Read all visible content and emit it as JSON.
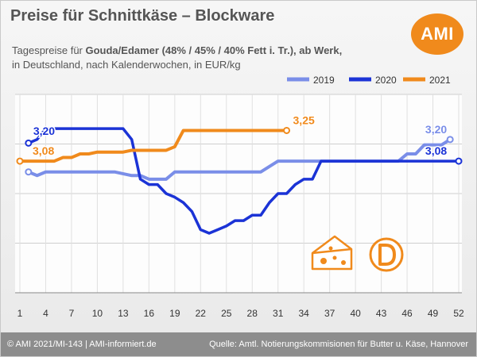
{
  "header": {
    "title": "Preise für Schnittkäse – Blockware",
    "subtitle_pre": "Tagespreise für ",
    "subtitle_bold": "Gouda/Edamer (48% / 45% / 40% Fett i. Tr.), ab Werk,",
    "subtitle_line2": "in Deutschland, nach Kalenderwochen, in EUR/kg"
  },
  "logo": {
    "text": "AMI"
  },
  "footer": {
    "left": "© AMI 2021/MI-143 | AMI-informiert.de",
    "right": "Quelle: Amtl. Notierungskommisionen für Butter u. Käse, Hannover"
  },
  "icons": [
    "cheese-icon",
    "d-seal-icon"
  ],
  "colors": {
    "2019": "#7a8ee8",
    "2020": "#1b33d6",
    "2021": "#f08a1c",
    "icon": "#f08a1c"
  },
  "chart_data": {
    "type": "line",
    "xlim": [
      1,
      52
    ],
    "x_ticks": [
      "1",
      "4",
      "7",
      "10",
      "13",
      "16",
      "19",
      "22",
      "25",
      "28",
      "31",
      "34",
      "37",
      "40",
      "43",
      "46",
      "49",
      "52"
    ],
    "ylim": [
      2.35,
      3.45
    ],
    "grid": true,
    "legend_position": "top-right",
    "series": [
      {
        "name": "2019",
        "x": [
          2,
          3,
          4,
          6,
          8,
          10,
          12,
          14,
          15,
          16,
          17,
          18,
          19,
          21,
          23,
          25,
          27,
          29,
          31,
          33,
          35,
          37,
          39,
          41,
          43,
          45,
          46,
          47,
          48,
          49,
          50,
          51
        ],
        "y": [
          3.02,
          3.0,
          3.02,
          3.02,
          3.02,
          3.02,
          3.02,
          3.0,
          3.0,
          2.98,
          2.98,
          2.98,
          3.02,
          3.02,
          3.02,
          3.02,
          3.02,
          3.02,
          3.08,
          3.08,
          3.08,
          3.08,
          3.08,
          3.08,
          3.08,
          3.08,
          3.12,
          3.12,
          3.17,
          3.17,
          3.17,
          3.2
        ],
        "label": "3,20"
      },
      {
        "name": "2020",
        "x": [
          2,
          3,
          4,
          5,
          6,
          8,
          10,
          12,
          13,
          14,
          15,
          16,
          17,
          18,
          19,
          20,
          21,
          22,
          23,
          24,
          25,
          26,
          27,
          28,
          29,
          30,
          31,
          32,
          33,
          34,
          35,
          36,
          38,
          40,
          42,
          44,
          46,
          48,
          50,
          52
        ],
        "y": [
          3.18,
          3.2,
          3.26,
          3.26,
          3.26,
          3.26,
          3.26,
          3.26,
          3.26,
          3.2,
          2.98,
          2.95,
          2.95,
          2.9,
          2.88,
          2.85,
          2.8,
          2.7,
          2.68,
          2.7,
          2.72,
          2.75,
          2.75,
          2.78,
          2.78,
          2.85,
          2.9,
          2.9,
          2.95,
          2.98,
          2.98,
          3.08,
          3.08,
          3.08,
          3.08,
          3.08,
          3.08,
          3.08,
          3.08,
          3.08
        ],
        "label": "3,20",
        "end_label": "3,08"
      },
      {
        "name": "2021",
        "x": [
          1,
          2,
          3,
          4,
          5,
          6,
          7,
          8,
          9,
          10,
          11,
          12,
          13,
          14,
          15,
          16,
          17,
          18,
          19,
          20,
          22,
          24,
          26,
          28,
          30,
          32
        ],
        "y": [
          3.08,
          3.08,
          3.08,
          3.08,
          3.08,
          3.1,
          3.1,
          3.12,
          3.12,
          3.13,
          3.13,
          3.13,
          3.13,
          3.14,
          3.14,
          3.14,
          3.14,
          3.14,
          3.16,
          3.25,
          3.25,
          3.25,
          3.25,
          3.25,
          3.25,
          3.25
        ],
        "label": "3,08",
        "end_label": "3,25"
      }
    ]
  }
}
